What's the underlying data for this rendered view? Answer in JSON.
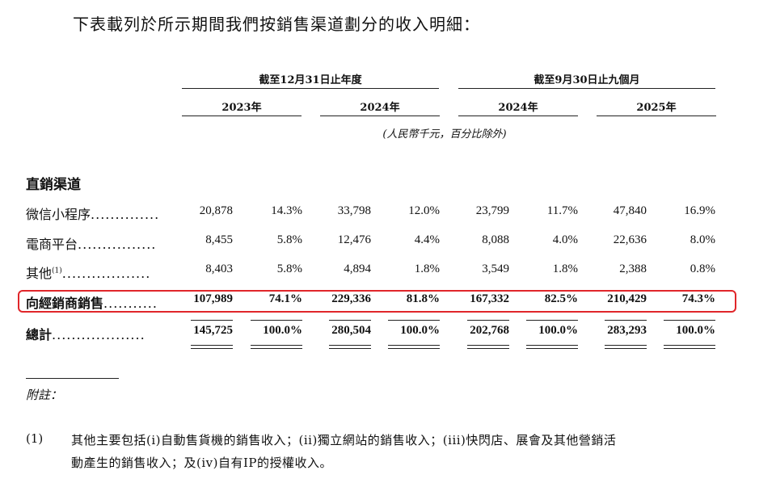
{
  "intro": "下表載列於所示期間我們按銷售渠道劃分的收入明細：",
  "header": {
    "group1": "截至12月31日止年度",
    "group2": "截至9月30日止九個月",
    "years": [
      "2023年",
      "2024年",
      "2024年",
      "2025年"
    ],
    "unit": "(人民幣千元，百分比除外)"
  },
  "section_label": "直銷渠道",
  "rows": [
    {
      "label": "微信小程序",
      "dots": "..............",
      "values": [
        "20,878",
        "14.3%",
        "33,798",
        "12.0%",
        "23,799",
        "11.7%",
        "47,840",
        "16.9%"
      ]
    },
    {
      "label": "電商平台",
      "dots": "................",
      "values": [
        "8,455",
        "5.8%",
        "12,476",
        "4.4%",
        "8,088",
        "4.0%",
        "22,636",
        "8.0%"
      ]
    },
    {
      "label": "其他",
      "sup": "(1)",
      "dots": "..................",
      "values": [
        "8,403",
        "5.8%",
        "4,894",
        "1.8%",
        "3,549",
        "1.8%",
        "2,388",
        "0.8%"
      ]
    },
    {
      "label": "向經銷商銷售",
      "dots": "...........",
      "values": [
        "107,989",
        "74.1%",
        "229,336",
        "81.8%",
        "167,332",
        "82.5%",
        "210,429",
        "74.3%"
      ]
    },
    {
      "label": "總計",
      "dots": "...................",
      "values": [
        "145,725",
        "100.0%",
        "280,504",
        "100.0%",
        "202,768",
        "100.0%",
        "283,293",
        "100.0%"
      ]
    }
  ],
  "notes_title": "附註：",
  "note": {
    "number": "(1)",
    "line1": "其他主要包括(i)自動售貨機的銷售收入；(ii)獨立網站的銷售收入；(iii)快閃店、展會及其他營銷活",
    "line2": "動產生的銷售收入；及(iv)自有IP的授權收入。"
  },
  "colors": {
    "highlight_border": "#e0262a",
    "text": "#111111"
  }
}
